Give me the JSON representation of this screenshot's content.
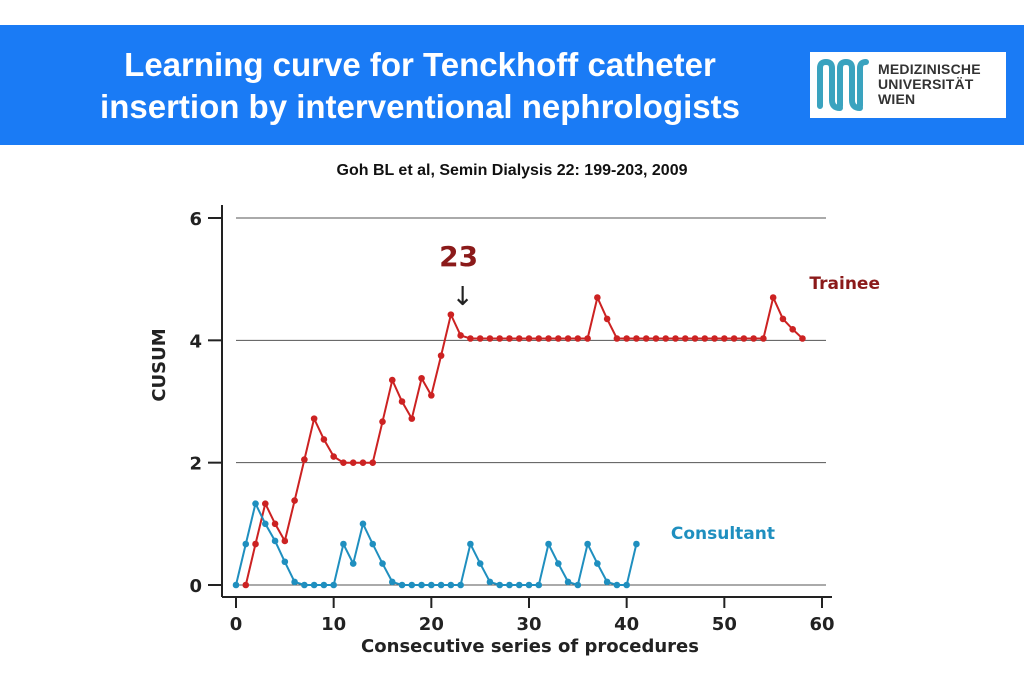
{
  "slide": {
    "title_line1": "Learning curve for Tenckhoff catheter",
    "title_line2": "insertion by interventional nephrologists",
    "citation": "Goh BL et al, Semin Dialysis 22: 199-203, 2009",
    "logo_text": [
      "MEDIZINISCHE",
      "UNIVERSITÄT",
      "WIEN"
    ],
    "header_color": "#1a7bf5"
  },
  "chart_data": {
    "type": "line",
    "title": "",
    "xlabel": "Consecutive series of procedures",
    "ylabel": "CUSUM",
    "xlim": [
      0,
      60
    ],
    "ylim": [
      0,
      6
    ],
    "xticks": [
      "0",
      "10",
      "20",
      "30",
      "40",
      "50",
      "60"
    ],
    "yticks": [
      "0",
      "2",
      "4",
      "6"
    ],
    "grid": "horizontal at y = 0, 2, 4, 6",
    "annotation": {
      "text": "23",
      "arrow": "↓",
      "x": 23,
      "color": "#8b1a1a"
    },
    "series": [
      {
        "name": "Trainee",
        "color": "#cc2222",
        "x": [
          1,
          2,
          3,
          4,
          5,
          6,
          7,
          8,
          9,
          10,
          11,
          12,
          13,
          14,
          15,
          16,
          17,
          18,
          19,
          20,
          21,
          22,
          23,
          24,
          25,
          26,
          27,
          28,
          29,
          30,
          31,
          32,
          33,
          34,
          35,
          36,
          37,
          38,
          39,
          40,
          41,
          42,
          43,
          44,
          45,
          46,
          47,
          48,
          49,
          50,
          51,
          52,
          53,
          54,
          55,
          56,
          57,
          58
        ],
        "values": [
          0,
          0.67,
          1.33,
          1,
          0.72,
          1.38,
          2.05,
          2.72,
          2.38,
          2.1,
          2,
          2,
          2,
          2,
          2.67,
          3.35,
          3,
          2.72,
          3.38,
          3.1,
          3.75,
          4.42,
          4.08,
          4.03,
          4.03,
          4.03,
          4.03,
          4.03,
          4.03,
          4.03,
          4.03,
          4.03,
          4.03,
          4.03,
          4.03,
          4.03,
          4.7,
          4.35,
          4.03,
          4.03,
          4.03,
          4.03,
          4.03,
          4.03,
          4.03,
          4.03,
          4.03,
          4.03,
          4.03,
          4.03,
          4.03,
          4.03,
          4.03,
          4.03,
          4.7,
          4.35,
          4.18,
          4.03
        ]
      },
      {
        "name": "Consultant",
        "color": "#1f8fbf",
        "x": [
          0,
          1,
          2,
          3,
          4,
          5,
          6,
          7,
          8,
          9,
          10,
          11,
          12,
          13,
          14,
          15,
          16,
          17,
          18,
          19,
          20,
          21,
          22,
          23,
          24,
          25,
          26,
          27,
          28,
          29,
          30,
          31,
          32,
          33,
          34,
          35,
          36,
          37,
          38,
          39,
          40,
          41
        ],
        "values": [
          0,
          0.67,
          1.33,
          1,
          0.72,
          0.38,
          0.05,
          0,
          0,
          0,
          0,
          0.67,
          0.35,
          1,
          0.67,
          0.35,
          0.05,
          0,
          0,
          0,
          0,
          0,
          0,
          0,
          0.67,
          0.35,
          0.05,
          0,
          0,
          0,
          0,
          0,
          0.67,
          0.35,
          0.05,
          0,
          0.67,
          0.35,
          0.05,
          0,
          0,
          0.67
        ]
      }
    ]
  }
}
